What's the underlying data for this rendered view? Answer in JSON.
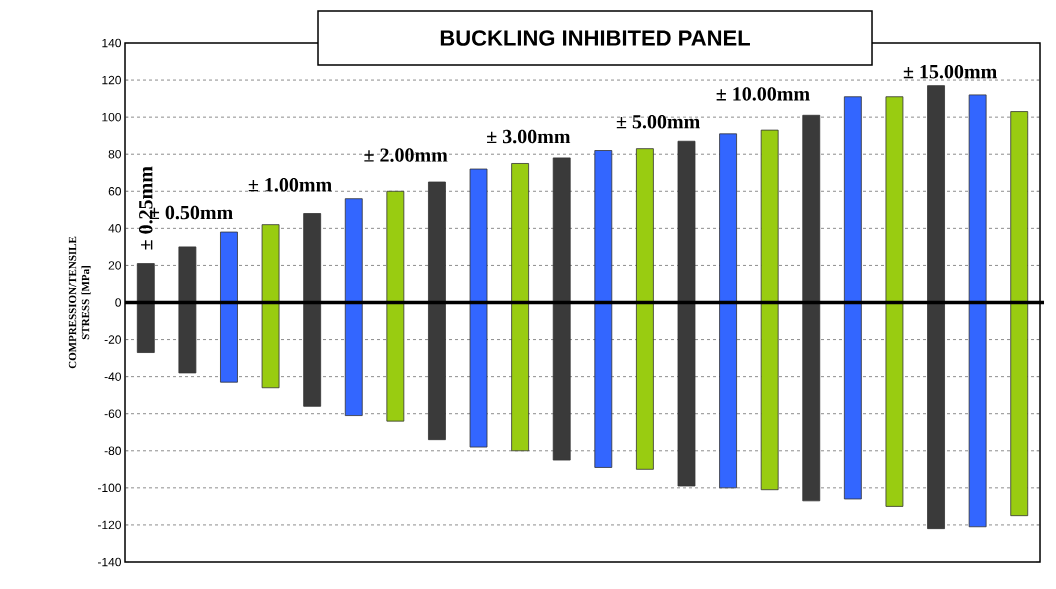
{
  "chart_data": {
    "type": "bar",
    "title": "BUCKLING INHIBITED PANEL",
    "ylabel": "COMPRESSION/TENSILE STRESS [MPa]",
    "categories": [
      null,
      null,
      null,
      null,
      null,
      null,
      null,
      null,
      null,
      null,
      null,
      null,
      null,
      null,
      null,
      null,
      null,
      null,
      null,
      null,
      null,
      null
    ],
    "series": [
      {
        "values": [
          21,
          30,
          38,
          42,
          48,
          56,
          60,
          65,
          72,
          75,
          78,
          82,
          83,
          87,
          91,
          93,
          101,
          111,
          111,
          117,
          112,
          103
        ],
        "colors": [
          "#3a3a3a",
          "#3a3a3a",
          "#3366ff",
          "#99cc11",
          "#3a3a3a",
          "#3366ff",
          "#99cc11",
          "#3a3a3a",
          "#3366ff",
          "#99cc11",
          "#3a3a3a",
          "#3366ff",
          "#99cc11",
          "#3a3a3a",
          "#3366ff",
          "#99cc11",
          "#3a3a3a",
          "#3366ff",
          "#99cc11",
          "#3a3a3a",
          "#3366ff",
          "#99cc11"
        ]
      },
      {
        "values": [
          -27,
          -38,
          -43,
          -46,
          -56,
          -61,
          -64,
          -74,
          -78,
          -80,
          -85,
          -89,
          -90,
          -99,
          -100,
          -101,
          -107,
          -106,
          -110,
          -122,
          -121,
          -115
        ],
        "colors": [
          "#3a3a3a",
          "#3a3a3a",
          "#3366ff",
          "#99cc11",
          "#3a3a3a",
          "#3366ff",
          "#99cc11",
          "#3a3a3a",
          "#3366ff",
          "#99cc11",
          "#3a3a3a",
          "#3366ff",
          "#99cc11",
          "#3a3a3a",
          "#3366ff",
          "#99cc11",
          "#3a3a3a",
          "#3366ff",
          "#99cc11",
          "#3a3a3a",
          "#3366ff",
          "#99cc11"
        ]
      }
    ],
    "stacked": true,
    "ylim": [
      -140,
      140
    ],
    "yticks": [
      -140,
      -120,
      -100,
      -80,
      -60,
      -40,
      -20,
      0,
      20,
      40,
      60,
      80,
      100,
      120,
      140
    ],
    "grid": "y",
    "ref_lines": [
      {
        "axis": "y",
        "value": 0,
        "color": "#000000"
      }
    ],
    "annotations": [
      "± 0.25mm",
      "± 0.50mm",
      "± 1.00mm",
      "± 2.00mm",
      "± 3.00mm",
      "± 5.00mm",
      "± 10.00mm",
      "± 15.00mm"
    ]
  }
}
